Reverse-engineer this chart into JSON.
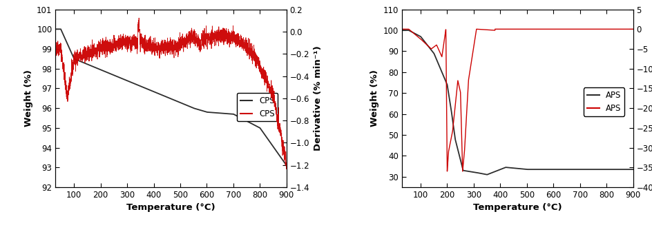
{
  "plot1": {
    "xlabel": "Temperature (°C)",
    "ylabel_left": "Weight (%)",
    "ylabel_right": "Derivative (% min⁻¹)",
    "xlim": [
      30,
      900
    ],
    "ylim_left": [
      92,
      101
    ],
    "ylim_right": [
      -1.4,
      0.2
    ],
    "yticks_left": [
      92,
      93,
      94,
      95,
      96,
      97,
      98,
      99,
      100,
      101
    ],
    "yticks_right": [
      -1.4,
      -1.2,
      -1.0,
      -0.8,
      -0.6,
      -0.4,
      -0.2,
      0.0,
      0.2
    ],
    "xticks": [
      100,
      200,
      300,
      400,
      500,
      600,
      700,
      800,
      900
    ],
    "tga_color": "#2d2d2d",
    "dtg_color": "#cc0000",
    "legend_labels": [
      "CPS",
      "CPS"
    ]
  },
  "plot2": {
    "xlabel": "Temperature (°C)",
    "ylabel_left": "Weight (%)",
    "ylabel_right": "Derivative (% min⁻¹)",
    "xlim": [
      30,
      900
    ],
    "ylim_left": [
      25,
      110
    ],
    "ylim_right": [
      -40,
      5
    ],
    "yticks_left": [
      30,
      40,
      50,
      60,
      70,
      80,
      90,
      100,
      110
    ],
    "yticks_right": [
      -40,
      -35,
      -30,
      -25,
      -20,
      -15,
      -10,
      -5,
      0,
      5
    ],
    "xticks": [
      100,
      200,
      300,
      400,
      500,
      600,
      700,
      800,
      900
    ],
    "tga_color": "#2d2d2d",
    "dtg_color": "#cc0000",
    "legend_labels": [
      "APS",
      "APS"
    ]
  }
}
